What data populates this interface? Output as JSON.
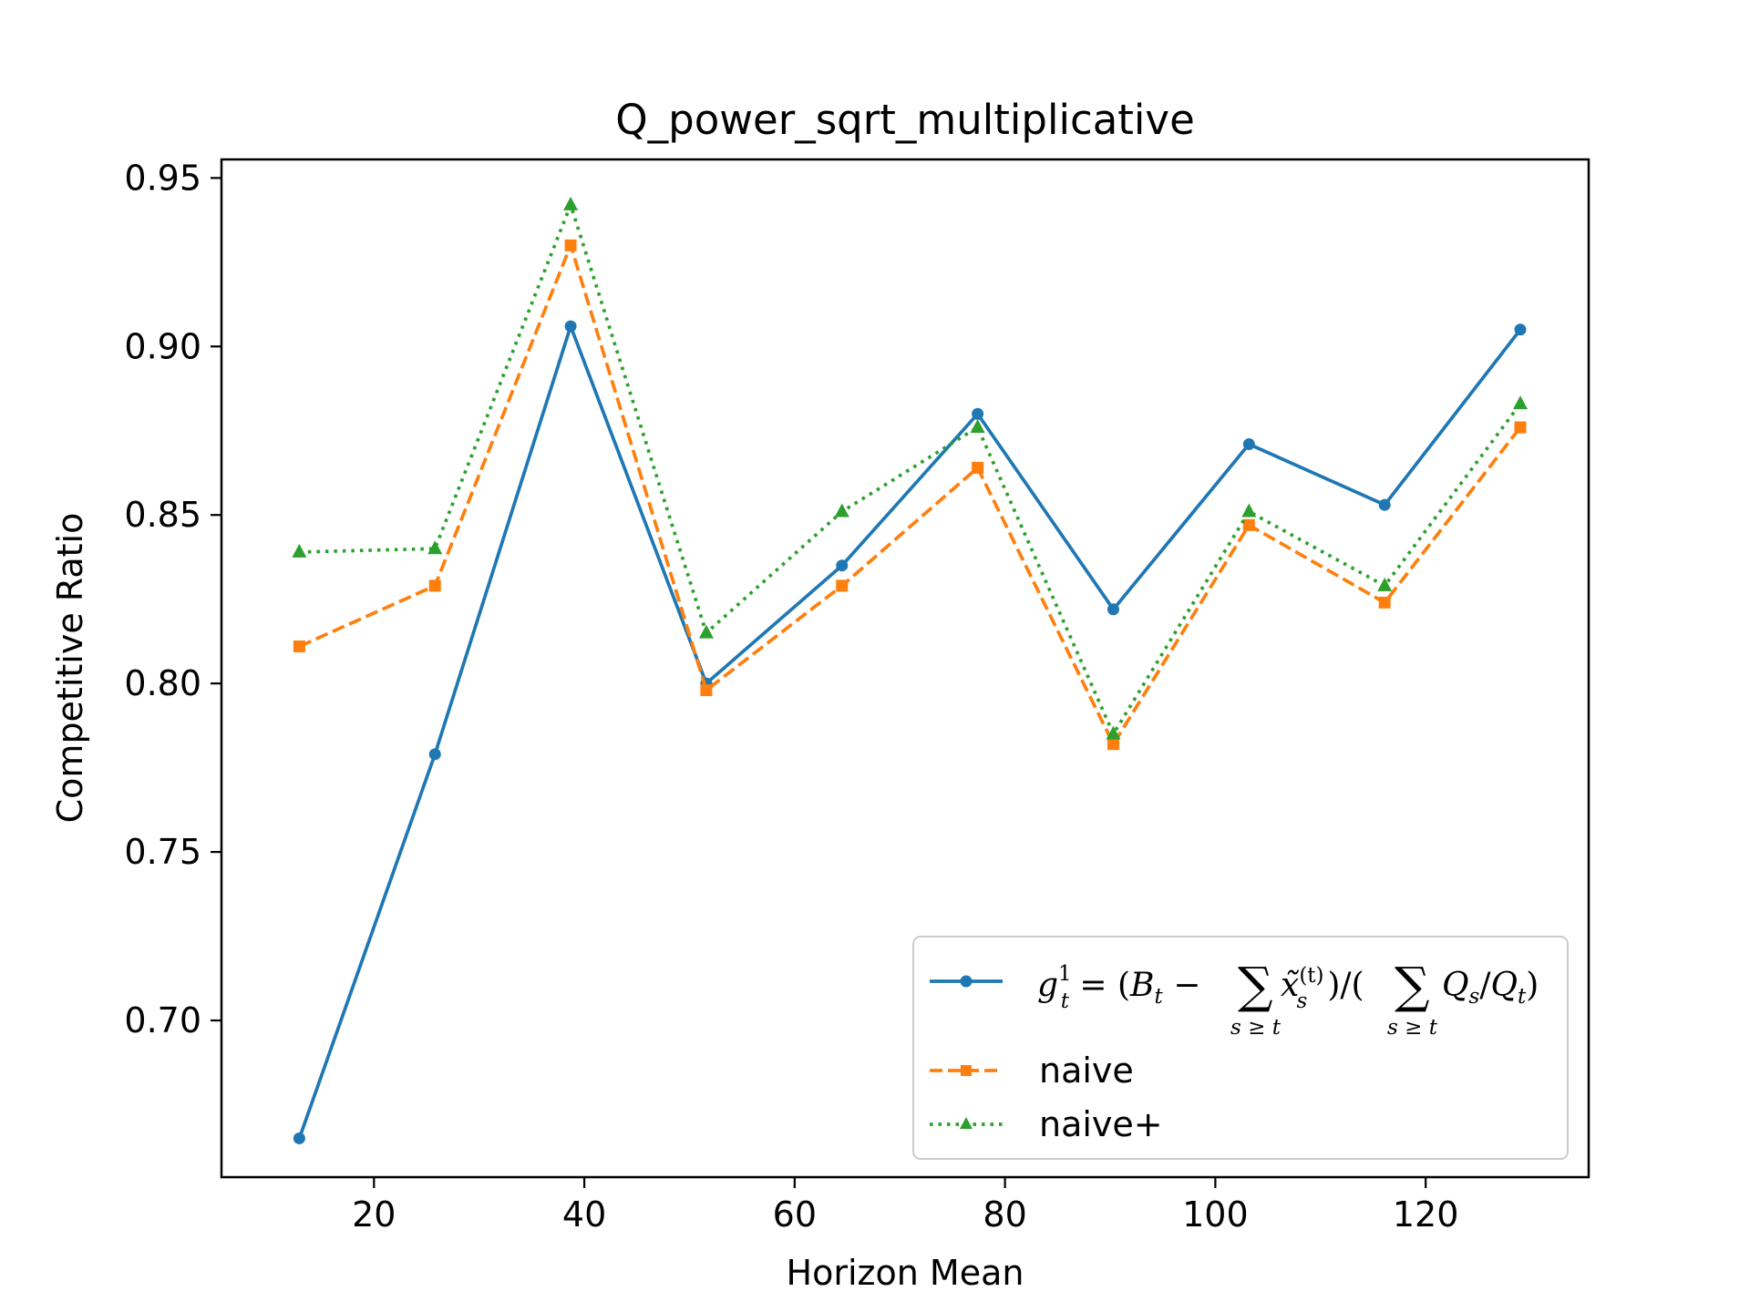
{
  "chart_data": {
    "type": "line",
    "title": "Q_power_sqrt_multiplicative",
    "xlabel": "Horizon Mean",
    "ylabel": "Competitive Ratio",
    "xlim": [
      5.5,
      135.5
    ],
    "ylim": [
      0.6535,
      0.9555
    ],
    "xticks": [
      20,
      40,
      60,
      80,
      100,
      120
    ],
    "xtick_labels": [
      "20",
      "40",
      "60",
      "80",
      "100",
      "120"
    ],
    "yticks": [
      0.7,
      0.75,
      0.8,
      0.85,
      0.9,
      0.95
    ],
    "ytick_labels": [
      "0.70",
      "0.75",
      "0.80",
      "0.85",
      "0.90",
      "0.95"
    ],
    "grid": false,
    "legend_position": "lower right",
    "x": [
      12.9,
      25.8,
      38.7,
      51.6,
      64.5,
      77.4,
      90.3,
      103.2,
      116.1,
      129.0
    ],
    "series": [
      {
        "name": "g_t^1 = (B_t − Σ_{s≥t} x̃_s^(t)) / (Σ_{s≥t} Q_s/Q_t)",
        "color": "#1f77b4",
        "linestyle": "solid",
        "marker": "circle",
        "values": [
          0.665,
          0.779,
          0.906,
          0.8,
          0.835,
          0.88,
          0.822,
          0.871,
          0.853,
          0.905
        ]
      },
      {
        "name": "naive",
        "color": "#ff7f0e",
        "linestyle": "dashed",
        "marker": "square",
        "values": [
          0.811,
          0.829,
          0.93,
          0.798,
          0.829,
          0.864,
          0.782,
          0.847,
          0.824,
          0.876
        ]
      },
      {
        "name": "naive+",
        "color": "#2ca02c",
        "linestyle": "dotted",
        "marker": "triangle",
        "values": [
          0.839,
          0.84,
          0.942,
          0.815,
          0.851,
          0.876,
          0.785,
          0.851,
          0.829,
          0.883
        ]
      }
    ]
  }
}
